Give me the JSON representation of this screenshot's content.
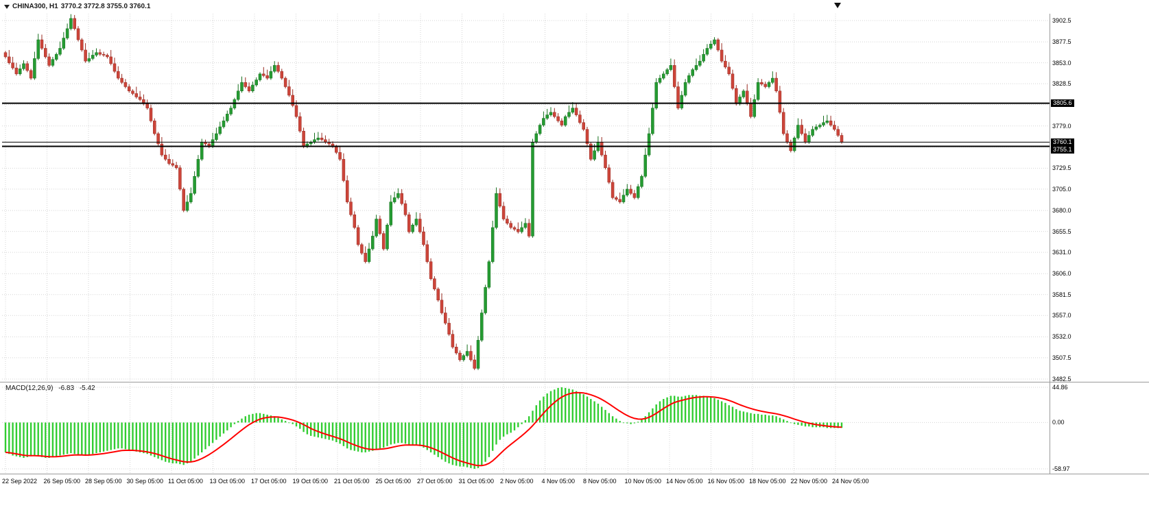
{
  "header": {
    "symbol": "CHINA300, H1",
    "ohlc": "3770.2 3772.8 3755.0 3760.1"
  },
  "colors": {
    "background": "#ffffff",
    "grid": "#d4d4d4",
    "up_fill": "#259b32",
    "up_stroke": "#17701f",
    "down_fill": "#cc453a",
    "down_stroke": "#992b22",
    "hline": "#000000",
    "badge_bg": "#000000",
    "badge_text": "#ffffff",
    "macd_histogram": "#32cd32",
    "macd_signal": "#ff0000",
    "separator": "#999999",
    "axis_text": "#000000"
  },
  "chart_data": {
    "type": "candlestick",
    "symbol": "CHINA300",
    "timeframe": "H1",
    "title": "CHINA300, H1 3770.2 3772.8 3755.0 3760.1",
    "ohlc_display": {
      "open": "3770.2",
      "high": "3772.8",
      "low": "3755.0",
      "close": "3760.1"
    },
    "ylim": [
      3482.5,
      3902.5
    ],
    "grid": true,
    "price_axis_labels": [
      "3902.5",
      "3877.5",
      "3853.0",
      "3828.5",
      "3779.0",
      "3729.5",
      "3705.0",
      "3680.0",
      "3655.5",
      "3631.0",
      "3606.0",
      "3581.5",
      "3557.0",
      "3532.0",
      "3507.5",
      "3482.5"
    ],
    "price_grid_levels": [
      3902.5,
      3877.5,
      3853.0,
      3828.5,
      3804.0,
      3779.0,
      3754.5,
      3729.5,
      3705.0,
      3680.0,
      3655.5,
      3631.0,
      3606.0,
      3581.5,
      3557.0,
      3532.0,
      3507.5,
      3482.5
    ],
    "price_badges": [
      "3805.6",
      "3760.1",
      "3755.1"
    ],
    "horizontal_lines": [
      3805.6,
      3755.1
    ],
    "current_price": 3760.1,
    "time_labels": [
      "22 Sep 2022",
      "26 Sep 05:00",
      "28 Sep 05:00",
      "30 Sep 05:00",
      "11 Oct 05:00",
      "13 Oct 05:00",
      "17 Oct 05:00",
      "19 Oct 05:00",
      "21 Oct 05:00",
      "25 Oct 05:00",
      "27 Oct 05:00",
      "31 Oct 05:00",
      "2 Nov 05:00",
      "4 Nov 05:00",
      "8 Nov 05:00",
      "10 Nov 05:00",
      "14 Nov 05:00",
      "16 Nov 05:00",
      "18 Nov 05:00",
      "22 Nov 05:00",
      "24 Nov 05:00"
    ],
    "first_open": 3865,
    "closes": [
      3860,
      3853,
      3847,
      3840,
      3846,
      3852,
      3844,
      3835,
      3858,
      3880,
      3870,
      3860,
      3850,
      3857,
      3863,
      3870,
      3882,
      3893,
      3905,
      3893,
      3880,
      3868,
      3855,
      3858,
      3862,
      3865,
      3863,
      3862,
      3860,
      3852,
      3843,
      3835,
      3830,
      3825,
      3820,
      3817,
      3813,
      3810,
      3805,
      3800,
      3785,
      3770,
      3758,
      3745,
      3740,
      3735,
      3733,
      3730,
      3705,
      3680,
      3690,
      3700,
      3720,
      3740,
      3760,
      3758,
      3755,
      3763,
      3770,
      3778,
      3785,
      3793,
      3800,
      3810,
      3820,
      3830,
      3825,
      3820,
      3827,
      3833,
      3840,
      3838,
      3835,
      3843,
      3850,
      3843,
      3835,
      3825,
      3815,
      3803,
      3790,
      3773,
      3755,
      3758,
      3760,
      3763,
      3765,
      3763,
      3760,
      3758,
      3755,
      3748,
      3740,
      3715,
      3690,
      3675,
      3660,
      3640,
      3630,
      3620,
      3635,
      3650,
      3670,
      3653,
      3635,
      3663,
      3690,
      3695,
      3700,
      3688,
      3675,
      3655,
      3663,
      3670,
      3655,
      3640,
      3620,
      3600,
      3588,
      3575,
      3560,
      3548,
      3535,
      3520,
      3513,
      3505,
      3510,
      3515,
      3505,
      3495,
      3528,
      3560,
      3590,
      3620,
      3660,
      3700,
      3685,
      3670,
      3665,
      3660,
      3658,
      3655,
      3660,
      3665,
      3650,
      3760,
      3770,
      3780,
      3788,
      3792,
      3795,
      3790,
      3785,
      3780,
      3790,
      3795,
      3800,
      3792,
      3783,
      3775,
      3758,
      3740,
      3750,
      3760,
      3745,
      3730,
      3713,
      3695,
      3693,
      3690,
      3698,
      3705,
      3700,
      3695,
      3708,
      3720,
      3745,
      3770,
      3800,
      3830,
      3835,
      3840,
      3845,
      3850,
      3825,
      3800,
      3815,
      3830,
      3838,
      3845,
      3850,
      3855,
      3863,
      3870,
      3875,
      3880,
      3868,
      3855,
      3848,
      3840,
      3823,
      3805,
      3813,
      3820,
      3805,
      3790,
      3810,
      3830,
      3828,
      3825,
      3830,
      3835,
      3820,
      3795,
      3770,
      3760,
      3750,
      3765,
      3780,
      3770,
      3760,
      3768,
      3775,
      3778,
      3780,
      3783,
      3785,
      3780,
      3775,
      3768,
      3760.1
    ],
    "macd": {
      "label": "MACD(12,26,9)",
      "macd_value": "-6.83",
      "signal_value": "-5.42",
      "axis_labels": [
        "44.86",
        "0.00",
        "-58.97"
      ],
      "ylim": [
        -58.97,
        44.86
      ],
      "signal_period": 9,
      "histogram": [
        -38,
        -40,
        -42,
        -43,
        -44,
        -45,
        -44,
        -43,
        -42,
        -43,
        -44,
        -45,
        -45,
        -44,
        -43,
        -42,
        -41,
        -40,
        -39,
        -40,
        -41,
        -42,
        -42,
        -41,
        -40,
        -39,
        -38,
        -37,
        -36,
        -35,
        -34,
        -33,
        -33,
        -34,
        -35,
        -36,
        -37,
        -38,
        -39,
        -40,
        -42,
        -44,
        -46,
        -48,
        -50,
        -51,
        -52,
        -52,
        -53,
        -54,
        -52,
        -50,
        -46,
        -42,
        -38,
        -34,
        -30,
        -26,
        -22,
        -18,
        -14,
        -10,
        -6,
        -2,
        2,
        5,
        8,
        10,
        11,
        12,
        12,
        11,
        10,
        9,
        8,
        6,
        4,
        2,
        0,
        -2,
        -5,
        -8,
        -12,
        -15,
        -17,
        -18,
        -19,
        -20,
        -21,
        -22,
        -23,
        -25,
        -27,
        -30,
        -33,
        -35,
        -36,
        -37,
        -38,
        -38,
        -37,
        -36,
        -34,
        -33,
        -32,
        -30,
        -28,
        -27,
        -26,
        -26,
        -27,
        -28,
        -29,
        -29,
        -30,
        -32,
        -35,
        -38,
        -41,
        -44,
        -47,
        -50,
        -52,
        -54,
        -55,
        -56,
        -56,
        -57,
        -58,
        -58.97,
        -58,
        -55,
        -50,
        -44,
        -36,
        -28,
        -22,
        -18,
        -15,
        -13,
        -10,
        -6,
        -2,
        3,
        8,
        15,
        22,
        28,
        33,
        37,
        40,
        42,
        44,
        44.86,
        44,
        43,
        42,
        40,
        38,
        36,
        33,
        30,
        27,
        24,
        20,
        16,
        12,
        8,
        5,
        2,
        0,
        -1,
        -2,
        -1,
        1,
        4,
        8,
        13,
        18,
        23,
        27,
        30,
        32,
        34,
        34,
        33,
        33,
        34,
        35,
        35,
        35,
        34,
        34,
        33,
        32,
        31,
        29,
        27,
        25,
        22,
        20,
        17,
        15,
        14,
        13,
        12,
        11,
        11,
        10,
        10,
        9,
        9,
        8,
        6,
        4,
        2,
        0,
        -2,
        -3,
        -4,
        -5,
        -5,
        -6,
        -6,
        -6,
        -6,
        -7,
        -7,
        -7,
        -7,
        -6.83
      ]
    }
  }
}
